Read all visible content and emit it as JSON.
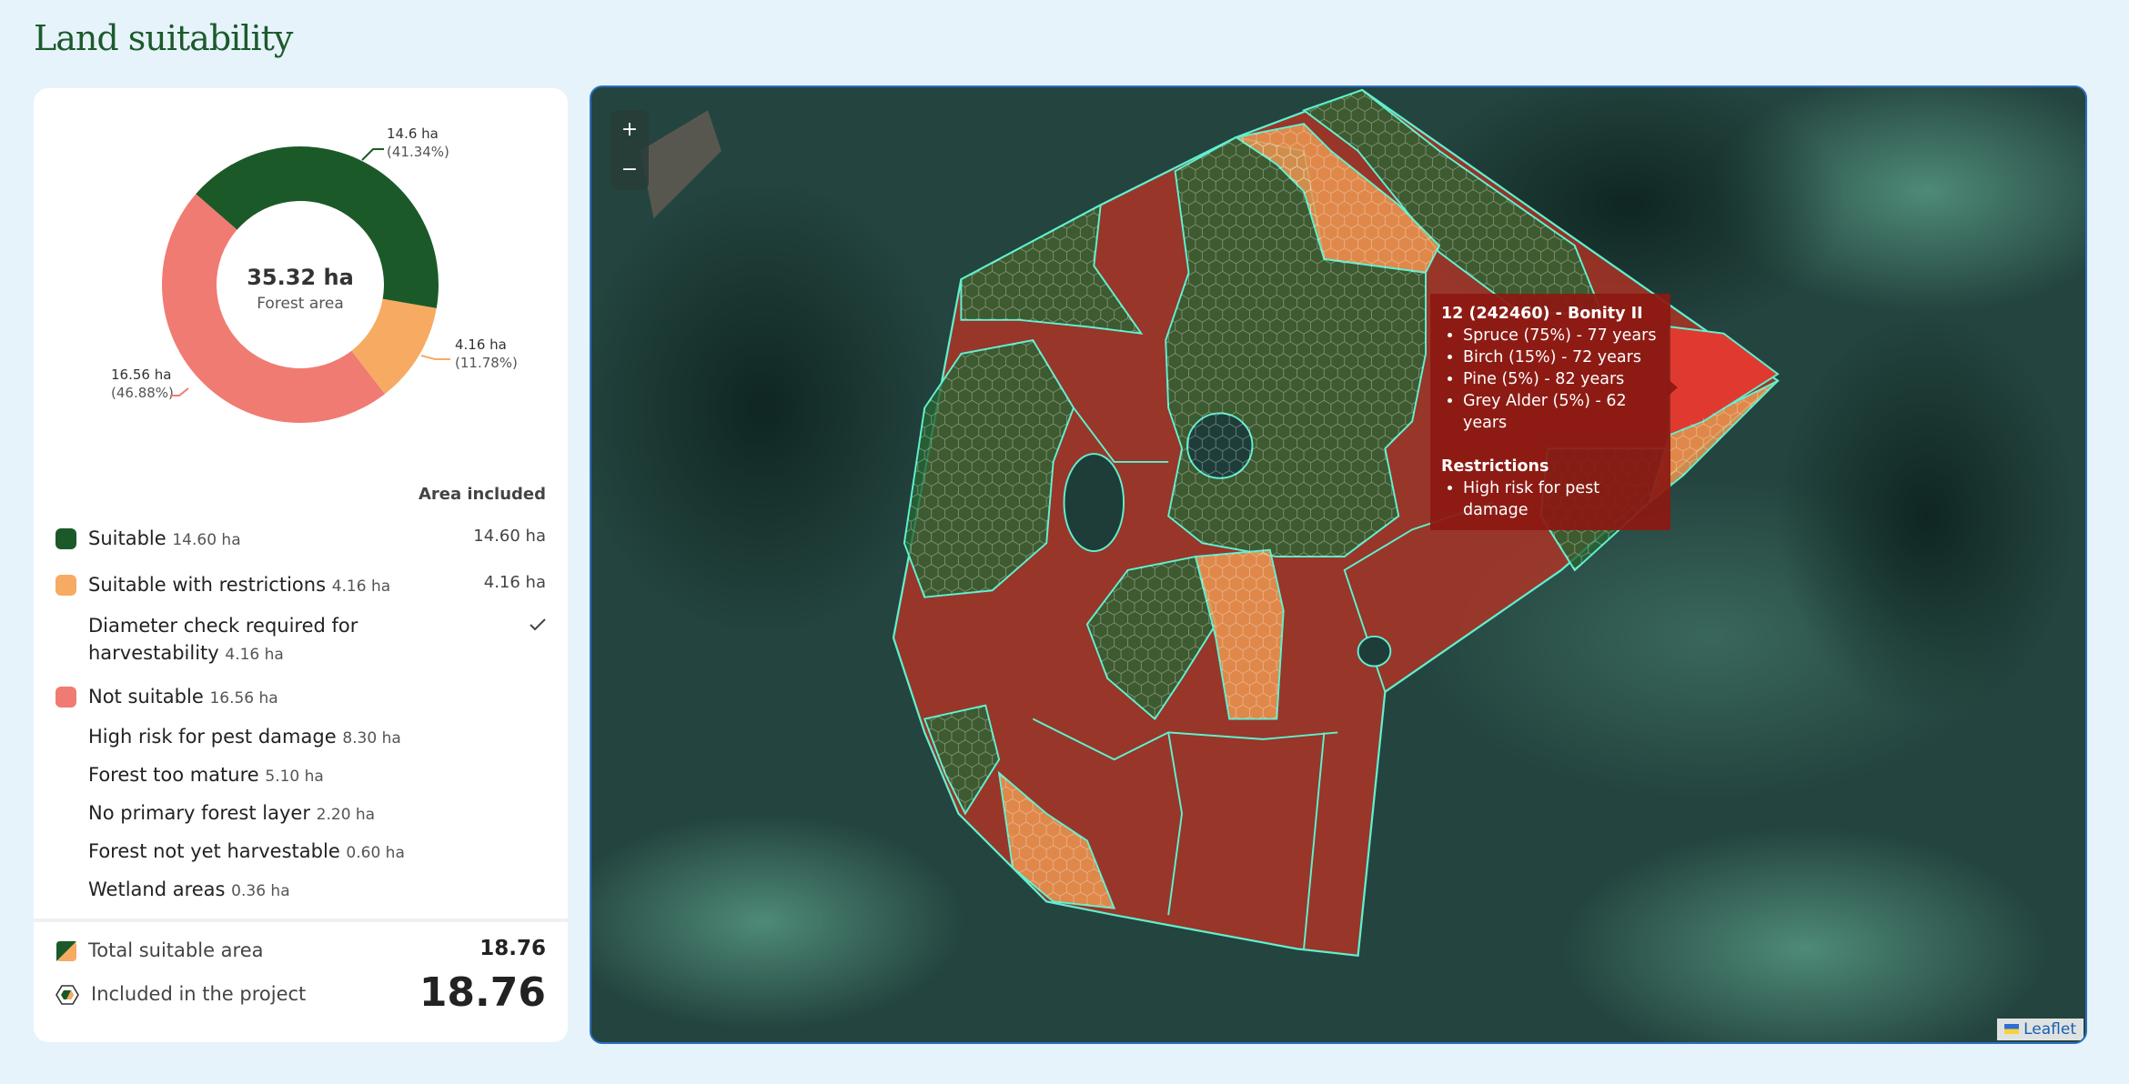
{
  "header": {
    "title": "Land suitability"
  },
  "chart_data": {
    "type": "pie",
    "values": [
      14.6,
      4.16,
      16.56
    ],
    "value_labels": [
      "14.6 ha",
      "4.16 ha",
      "16.56 ha"
    ],
    "percent_labels": [
      "(41.34%)",
      "(11.78%)",
      "(46.88%)"
    ],
    "colors": [
      "#1b5a28",
      "#f7ab62",
      "#f07b72"
    ],
    "center_label": "35.32 ha",
    "center_sublabel": "Forest area"
  },
  "legend": {
    "header": "Area included",
    "rows": [
      {
        "label": "Suitable",
        "area": "14.60 ha",
        "included": "14.60 ha",
        "color": "#1b5a28"
      },
      {
        "label": "Suitable with restrictions",
        "area": "4.16 ha",
        "included": "4.16 ha",
        "color": "#f7ab62"
      },
      {
        "label": "Diameter check required for harvestability",
        "area": "4.16 ha"
      },
      {
        "label": "Not suitable",
        "area": "16.56 ha",
        "color": "#f07b72"
      },
      {
        "label": "High risk for pest damage",
        "area": "8.30 ha"
      },
      {
        "label": "Forest too mature",
        "area": "5.10 ha"
      },
      {
        "label": "No primary forest layer",
        "area": "2.20 ha"
      },
      {
        "label": "Forest not yet harvestable",
        "area": "0.60 ha"
      },
      {
        "label": "Wetland areas",
        "area": "0.36 ha"
      }
    ]
  },
  "footer": {
    "total_label": "Total suitable area",
    "total_value": "18.76",
    "included_label": "Included in the project",
    "included_value": "18.76"
  },
  "map": {
    "zoom_in": "+",
    "zoom_out": "−",
    "attribution": "Leaflet",
    "tooltip": {
      "title": "12 (242460) - Bonity II",
      "species": [
        "Spruce (75%) - 77 years",
        "Birch (15%) - 72 years",
        "Pine (5%) - 82 years",
        "Grey Alder (5%) - 62 years"
      ],
      "restrictions_title": "Restrictions",
      "restrictions": [
        "High risk for pest damage"
      ]
    }
  }
}
